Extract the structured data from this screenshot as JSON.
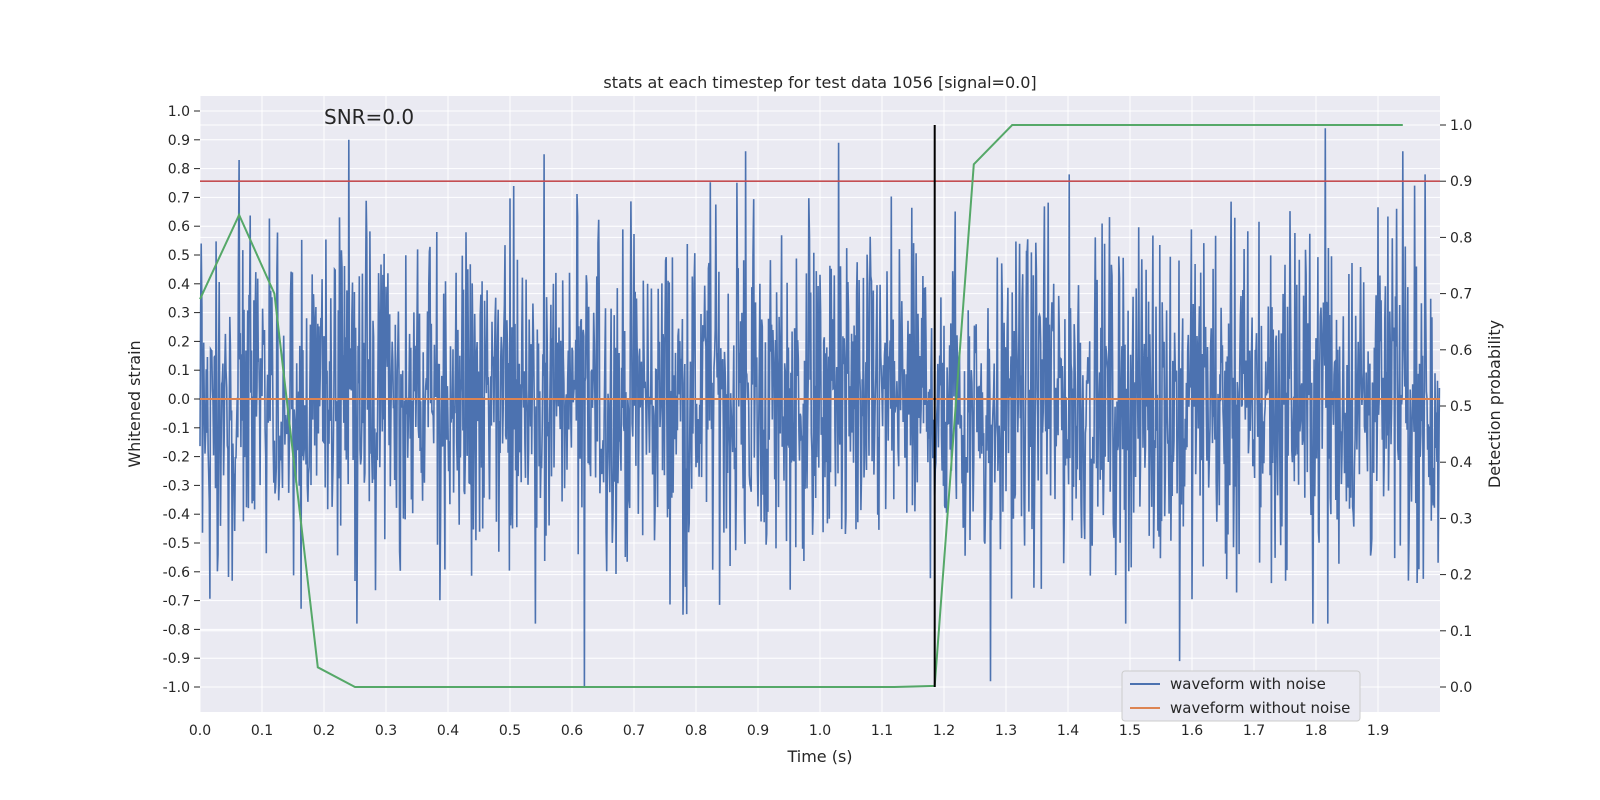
{
  "chart_data": {
    "type": "line",
    "title": "stats at each timestep for test data 1056 [signal=0.0]",
    "annotation": "SNR=0.0",
    "xlabel": "Time (s)",
    "ylabel": "Whitened strain",
    "y2label": "Detection probability",
    "xlim": [
      0.0,
      2.0
    ],
    "ylim": [
      -1.1,
      1.05
    ],
    "y2lim": [
      -0.05,
      1.03
    ],
    "x_ticks": [
      "0.0",
      "0.1",
      "0.2",
      "0.3",
      "0.4",
      "0.5",
      "0.6",
      "0.7",
      "0.8",
      "0.9",
      "1.0",
      "1.1",
      "1.2",
      "1.3",
      "1.4",
      "1.5",
      "1.6",
      "1.7",
      "1.8",
      "1.9"
    ],
    "y_ticks": [
      "1.0",
      "0.9",
      "0.8",
      "0.7",
      "0.6",
      "0.5",
      "0.4",
      "0.3",
      "0.2",
      "0.1",
      "0.0",
      "-0.1",
      "-0.2",
      "-0.3",
      "-0.4",
      "-0.5",
      "-0.6",
      "-0.7",
      "-0.8",
      "-0.9",
      "-1.0"
    ],
    "y2_ticks": [
      "1.0",
      "0.9",
      "0.8",
      "0.7",
      "0.6",
      "0.5",
      "0.4",
      "0.3",
      "0.2",
      "0.1",
      "0.0"
    ],
    "grid": true,
    "legend_position": "bottom-right",
    "series": [
      {
        "name": "waveform with noise",
        "color": "#4c72b0",
        "description_only": "dense noise trace spanning roughly -1.0 to 0.9 across 0–2 s",
        "extremes": [
          {
            "x": 0.063,
            "y": 0.83
          },
          {
            "x": 0.24,
            "y": 0.9
          },
          {
            "x": 0.555,
            "y": 0.85
          },
          {
            "x": 0.62,
            "y": -1.0
          },
          {
            "x": 0.88,
            "y": 0.86
          },
          {
            "x": 1.03,
            "y": 0.89
          },
          {
            "x": 1.275,
            "y": -0.98
          },
          {
            "x": 1.58,
            "y": -0.91
          },
          {
            "x": 1.815,
            "y": 0.94
          },
          {
            "x": 1.94,
            "y": 0.86
          }
        ]
      },
      {
        "name": "waveform without noise",
        "color": "#dd8452",
        "x": [
          0.0,
          2.0
        ],
        "y": [
          0.0,
          0.0
        ]
      },
      {
        "axis": "right",
        "color": "#55a868",
        "x": [
          0.0,
          0.063,
          0.12,
          0.19,
          0.25,
          1.12,
          1.185,
          1.248,
          1.31,
          1.94
        ],
        "y": [
          0.69,
          0.84,
          0.7,
          0.035,
          0.0,
          0.0,
          0.002,
          0.93,
          1.0,
          1.0
        ]
      }
    ],
    "hlines": [
      {
        "axis": "right",
        "y": 0.9,
        "color": "#c44e52"
      }
    ],
    "vlines": [
      {
        "x": 1.185,
        "y2_from": 0.0,
        "y2_to": 1.0,
        "color": "#000000"
      }
    ]
  },
  "legend": {
    "items": [
      {
        "label": "waveform with noise",
        "color": "#4c72b0"
      },
      {
        "label": "waveform without noise",
        "color": "#dd8452"
      }
    ]
  }
}
